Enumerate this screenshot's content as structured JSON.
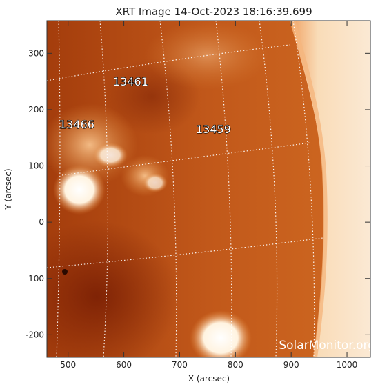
{
  "title": "XRT Image 14-Oct-2023 18:16:39.699",
  "x_axis": {
    "label": "X (arcsec)",
    "range": [
      462,
      1042
    ],
    "ticks": [
      "500",
      "600",
      "700",
      "800",
      "900",
      "1000"
    ],
    "tick_values": [
      500,
      600,
      700,
      800,
      900,
      1000
    ]
  },
  "y_axis": {
    "label": "Y (arcsec)",
    "range": [
      -240,
      358
    ],
    "ticks": [
      "300",
      "200",
      "100",
      "0",
      "-100",
      "-200"
    ],
    "tick_values": [
      300,
      200,
      100,
      0,
      -100,
      -200
    ]
  },
  "active_regions": [
    {
      "label": "13461",
      "x": 615,
      "y": 245
    },
    {
      "label": "13466",
      "x": 518,
      "y": 172
    },
    {
      "label": "13459",
      "x": 770,
      "y": 160
    }
  ],
  "watermark": "SolarMonitor.org",
  "colors": {
    "dark_red": "#8a2a08",
    "mid_orange": "#c85a15",
    "bright_orange": "#e89040",
    "hot_white": "#fff4e0",
    "frame": "#333333"
  }
}
